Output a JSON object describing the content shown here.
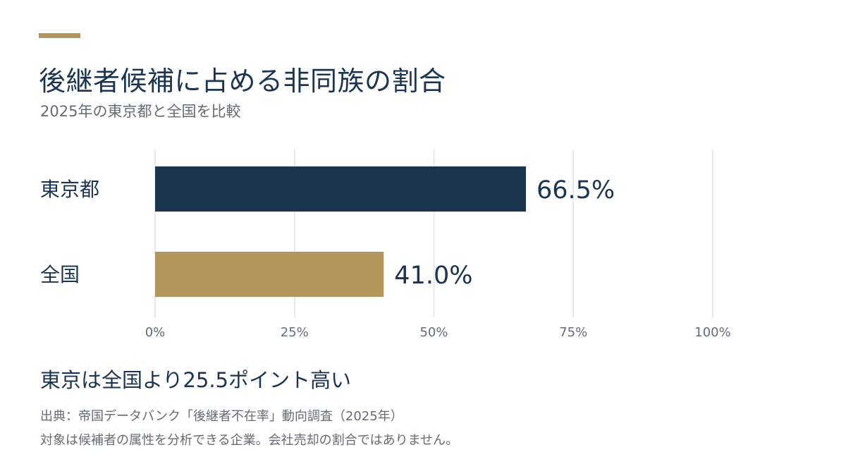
{
  "header": {
    "title": "後継者候補に占める非同族の割合",
    "subtitle": "2025年の東京都と全国を比較"
  },
  "colors": {
    "accent": "#b2965b",
    "tokyo": "#1b3550",
    "national": "#b2965b",
    "text_primary": "#1b3550",
    "text_secondary": "#666b72",
    "grid": "#e4e4e4"
  },
  "chart_data": {
    "type": "bar",
    "orientation": "horizontal",
    "categories": [
      "東京都",
      "全国"
    ],
    "values": [
      66.5,
      41.0
    ],
    "value_labels": [
      "66.5%",
      "41.0%"
    ],
    "xlim": [
      0,
      100
    ],
    "xticks": [
      0,
      25,
      50,
      75,
      100
    ],
    "xtick_labels": [
      "0%",
      "25%",
      "50%",
      "75%",
      "100%"
    ],
    "grid": true,
    "legend": "none"
  },
  "footer": {
    "headline": "東京は全国より25.5ポイント高い",
    "source": "出典：帝国データバンク「後継者不在率」動向調査（2025年）",
    "note": "対象は候補者の属性を分析できる企業。会社売却の割合ではありません。"
  }
}
